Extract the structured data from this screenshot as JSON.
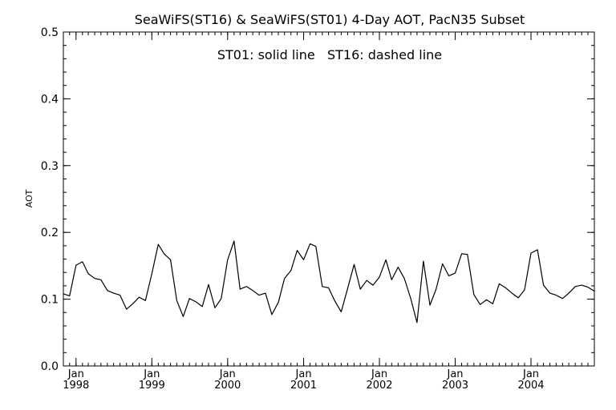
{
  "chart_data": {
    "type": "line",
    "title": "SeaWiFS(ST16) & SeaWiFS(ST01) 4-Day AOT, PacN35 Subset",
    "legend_text": "ST01: solid line   ST16: dashed line",
    "ylabel": "AOT",
    "xlabel": "",
    "ylim": [
      0.0,
      0.5
    ],
    "xlim": [
      "1997-11-01",
      "2004-11-01"
    ],
    "y_ticks": [
      "0.0",
      "0.1",
      "0.2",
      "0.3",
      "0.4",
      "0.5"
    ],
    "x_ticks": [
      {
        "month": "Jan",
        "year": "1998",
        "date": "1998-01-01"
      },
      {
        "month": "Jan",
        "year": "1999",
        "date": "1999-01-01"
      },
      {
        "month": "Jan",
        "year": "2000",
        "date": "2000-01-01"
      },
      {
        "month": "Jan",
        "year": "2001",
        "date": "2001-01-01"
      },
      {
        "month": "Jan",
        "year": "2002",
        "date": "2002-01-01"
      },
      {
        "month": "Jan",
        "year": "2003",
        "date": "2003-01-01"
      },
      {
        "month": "Jan",
        "year": "2004",
        "date": "2004-01-01"
      }
    ],
    "grid": false,
    "series": [
      {
        "name": "ST01",
        "style": "solid",
        "color": "#000000",
        "x": [
          "1997-11-01",
          "1997-12-01",
          "1998-01-01",
          "1998-02-01",
          "1998-03-01",
          "1998-04-01",
          "1998-05-01",
          "1998-06-01",
          "1998-07-01",
          "1998-08-01",
          "1998-09-01",
          "1998-10-01",
          "1998-11-01",
          "1998-12-01",
          "1999-01-01",
          "1999-02-01",
          "1999-03-01",
          "1999-04-01",
          "1999-05-01",
          "1999-06-01",
          "1999-07-01",
          "1999-08-01",
          "1999-09-01",
          "1999-10-01",
          "1999-11-01",
          "1999-12-01",
          "2000-01-01",
          "2000-02-01",
          "2000-03-01",
          "2000-04-01",
          "2000-05-01",
          "2000-06-01",
          "2000-07-01",
          "2000-08-01",
          "2000-09-01",
          "2000-10-01",
          "2000-11-01",
          "2000-12-01",
          "2001-01-01",
          "2001-02-01",
          "2001-03-01",
          "2001-04-01",
          "2001-05-01",
          "2001-06-01",
          "2001-07-01",
          "2001-08-01",
          "2001-09-01",
          "2001-10-01",
          "2001-11-01",
          "2001-12-01",
          "2002-01-01",
          "2002-02-01",
          "2002-03-01",
          "2002-04-01",
          "2002-05-01",
          "2002-06-01",
          "2002-07-01",
          "2002-08-01",
          "2002-09-01",
          "2002-10-01",
          "2002-11-01",
          "2002-12-01",
          "2003-01-01",
          "2003-02-01",
          "2003-03-01",
          "2003-04-01",
          "2003-05-01",
          "2003-06-01",
          "2003-07-01",
          "2003-08-01",
          "2003-09-01",
          "2003-10-01",
          "2003-11-01",
          "2003-12-01",
          "2004-01-01",
          "2004-02-01",
          "2004-03-01",
          "2004-04-01",
          "2004-05-01",
          "2004-06-01",
          "2004-07-01",
          "2004-08-01",
          "2004-09-01",
          "2004-10-01",
          "2004-11-01"
        ],
        "y": [
          0.108,
          0.105,
          0.151,
          0.156,
          0.138,
          0.131,
          0.129,
          0.113,
          0.109,
          0.106,
          0.085,
          0.093,
          0.103,
          0.098,
          0.138,
          0.182,
          0.168,
          0.159,
          0.098,
          0.074,
          0.101,
          0.096,
          0.089,
          0.122,
          0.087,
          0.101,
          0.159,
          0.187,
          0.115,
          0.119,
          0.113,
          0.106,
          0.109,
          0.077,
          0.095,
          0.131,
          0.143,
          0.173,
          0.159,
          0.183,
          0.179,
          0.119,
          0.117,
          0.097,
          0.081,
          0.116,
          0.152,
          0.115,
          0.128,
          0.121,
          0.133,
          0.159,
          0.129,
          0.148,
          0.131,
          0.101,
          0.065,
          0.157,
          0.091,
          0.115,
          0.153,
          0.135,
          0.139,
          0.168,
          0.167,
          0.107,
          0.092,
          0.099,
          0.093,
          0.123,
          0.117,
          0.109,
          0.102,
          0.114,
          0.169,
          0.174,
          0.121,
          0.109,
          0.106,
          0.101,
          0.109,
          0.119,
          0.121,
          0.118,
          0.112
        ]
      }
    ]
  }
}
